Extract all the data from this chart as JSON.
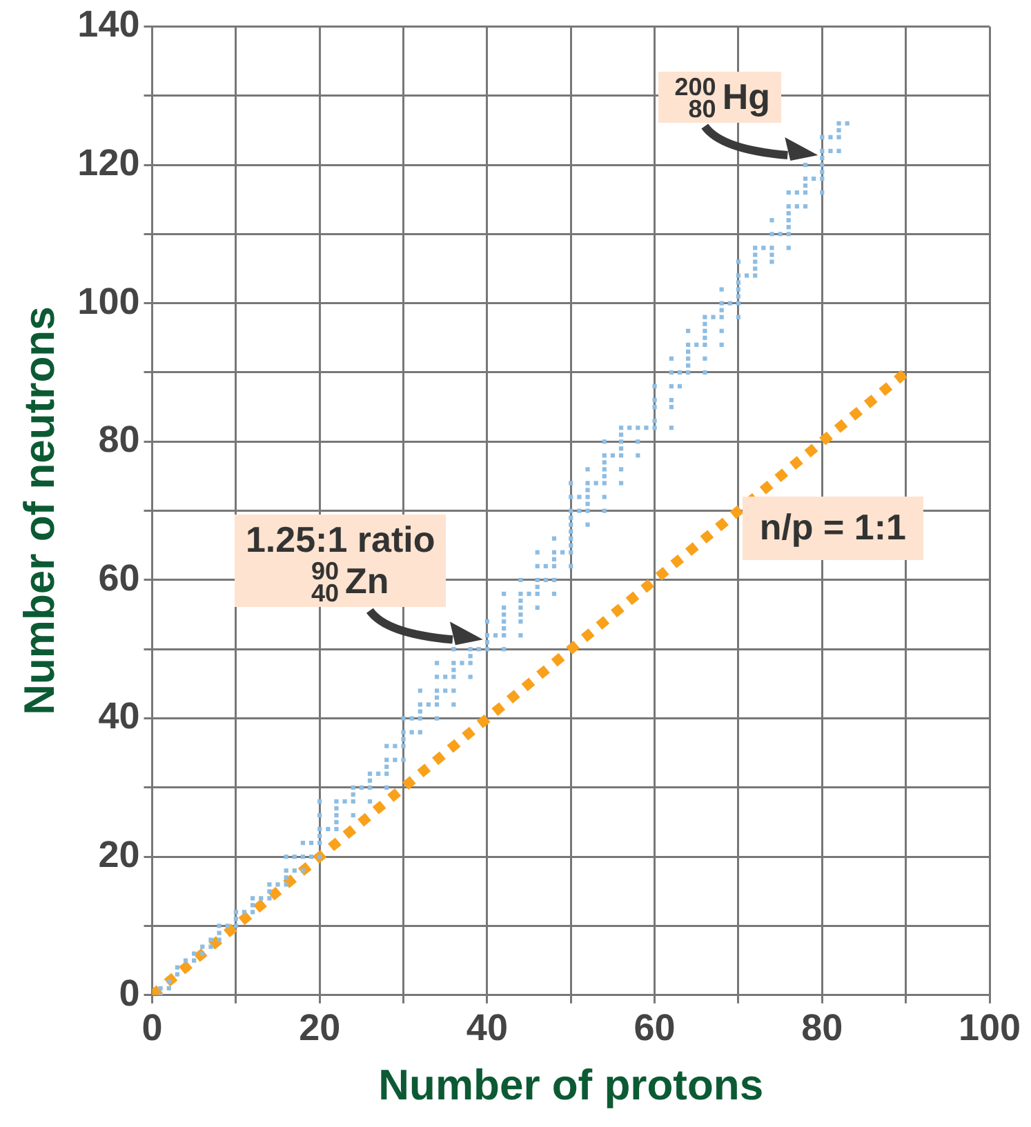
{
  "chart_data": {
    "type": "scatter",
    "xlabel": "Number of protons",
    "ylabel": "Number of neutrons",
    "xlim": [
      0,
      100
    ],
    "ylim": [
      0,
      140
    ],
    "xticks": [
      0,
      {
        "value": 10,
        "label": null
      },
      20,
      {
        "value": 30,
        "label": null
      },
      40,
      {
        "value": 50,
        "label": null
      },
      60,
      {
        "value": 70,
        "label": null
      },
      80,
      {
        "value": 90,
        "label": null
      },
      100
    ],
    "yticks": [
      0,
      {
        "value": 10,
        "label": null
      },
      20,
      {
        "value": 30,
        "label": null
      },
      40,
      {
        "value": 50,
        "label": null
      },
      60,
      {
        "value": 70,
        "label": null
      },
      80,
      {
        "value": 90,
        "label": null
      },
      100,
      {
        "value": 110,
        "label": null
      },
      120,
      {
        "value": 130,
        "label": null
      },
      140
    ],
    "grid": true,
    "legend": false,
    "marker": "square",
    "series": [
      {
        "color": "#8dbde3",
        "x": [
          1,
          1,
          2,
          2,
          3,
          3,
          4,
          5,
          5,
          6,
          6,
          7,
          7,
          8,
          8,
          8,
          9,
          10,
          10,
          10,
          11,
          12,
          12,
          12,
          13,
          14,
          14,
          14,
          15,
          16,
          16,
          16,
          16,
          17,
          17,
          18,
          18,
          18,
          19,
          19,
          20,
          20,
          20,
          20,
          20,
          20,
          21,
          22,
          22,
          22,
          22,
          22,
          23,
          24,
          24,
          24,
          24,
          25,
          26,
          26,
          26,
          26,
          27,
          28,
          28,
          28,
          28,
          28,
          29,
          29,
          30,
          30,
          30,
          30,
          30,
          31,
          31,
          32,
          32,
          32,
          32,
          32,
          33,
          34,
          34,
          34,
          34,
          34,
          34,
          35,
          35,
          36,
          36,
          36,
          36,
          36,
          36,
          37,
          38,
          38,
          38,
          38,
          39,
          40,
          40,
          40,
          40,
          41,
          42,
          42,
          42,
          42,
          42,
          42,
          42,
          44,
          44,
          44,
          44,
          44,
          44,
          44,
          45,
          46,
          46,
          46,
          46,
          46,
          46,
          47,
          47,
          48,
          48,
          48,
          48,
          48,
          48,
          49,
          50,
          50,
          50,
          50,
          50,
          50,
          50,
          50,
          50,
          50,
          51,
          51,
          52,
          52,
          52,
          52,
          52,
          52,
          52,
          53,
          54,
          54,
          54,
          54,
          54,
          54,
          54,
          54,
          55,
          56,
          56,
          56,
          56,
          56,
          56,
          56,
          57,
          58,
          58,
          58,
          59,
          60,
          60,
          60,
          60,
          60,
          62,
          62,
          62,
          62,
          62,
          62,
          63,
          63,
          64,
          64,
          64,
          64,
          64,
          64,
          65,
          66,
          66,
          66,
          66,
          66,
          66,
          66,
          67,
          68,
          68,
          68,
          68,
          68,
          68,
          69,
          70,
          70,
          70,
          70,
          70,
          70,
          70,
          71,
          72,
          72,
          72,
          72,
          72,
          73,
          74,
          74,
          74,
          74,
          74,
          75,
          76,
          76,
          76,
          76,
          76,
          76,
          76,
          77,
          77,
          78,
          78,
          78,
          78,
          78,
          79,
          80,
          80,
          80,
          80,
          80,
          80,
          80,
          81,
          81,
          82,
          82,
          82,
          82,
          83
        ],
        "values": [
          0,
          1,
          1,
          2,
          3,
          4,
          5,
          5,
          6,
          6,
          7,
          7,
          8,
          8,
          9,
          10,
          10,
          10,
          11,
          12,
          12,
          12,
          13,
          14,
          14,
          14,
          15,
          16,
          16,
          16,
          17,
          18,
          20,
          18,
          20,
          18,
          20,
          22,
          20,
          22,
          20,
          22,
          23,
          24,
          26,
          28,
          24,
          24,
          25,
          26,
          27,
          28,
          28,
          26,
          28,
          29,
          30,
          30,
          28,
          30,
          31,
          32,
          32,
          30,
          32,
          33,
          34,
          36,
          34,
          36,
          34,
          36,
          37,
          38,
          40,
          38,
          40,
          38,
          40,
          41,
          42,
          44,
          42,
          40,
          42,
          43,
          44,
          46,
          48,
          44,
          46,
          42,
          44,
          46,
          47,
          48,
          50,
          48,
          46,
          48,
          49,
          50,
          50,
          50,
          51,
          52,
          54,
          52,
          50,
          52,
          53,
          54,
          55,
          56,
          58,
          52,
          54,
          55,
          56,
          57,
          58,
          60,
          58,
          56,
          58,
          59,
          60,
          62,
          64,
          60,
          62,
          58,
          60,
          62,
          63,
          64,
          66,
          64,
          62,
          64,
          65,
          66,
          67,
          68,
          69,
          70,
          72,
          74,
          70,
          72,
          68,
          70,
          71,
          72,
          73,
          74,
          76,
          74,
          70,
          72,
          74,
          75,
          76,
          77,
          78,
          80,
          78,
          74,
          76,
          78,
          79,
          80,
          81,
          82,
          82,
          78,
          80,
          82,
          82,
          82,
          83,
          85,
          86,
          88,
          82,
          85,
          86,
          88,
          90,
          92,
          88,
          90,
          90,
          91,
          92,
          93,
          94,
          96,
          94,
          90,
          92,
          94,
          95,
          96,
          97,
          98,
          98,
          94,
          96,
          98,
          99,
          100,
          102,
          100,
          98,
          100,
          101,
          102,
          103,
          104,
          106,
          104,
          104,
          105,
          106,
          107,
          108,
          108,
          106,
          107,
          108,
          110,
          112,
          110,
          108,
          110,
          111,
          112,
          113,
          114,
          116,
          114,
          116,
          114,
          116,
          117,
          118,
          120,
          118,
          116,
          118,
          119,
          120,
          121,
          122,
          124,
          122,
          124,
          122,
          124,
          125,
          126,
          126
        ]
      },
      {
        "type": "line",
        "name": "n/p = 1:1",
        "color": "#f9a11b",
        "x": [
          0,
          90
        ],
        "values": [
          0,
          90
        ],
        "marker": "none",
        "line_style": "dotted"
      }
    ],
    "annotations": [
      {
        "text": "$^{200}$$_{80}$Hg",
        "x": 80,
        "y": 120
      },
      {
        "text": "1.25:1 ratio\n$^{90}$$_{40}$Zn",
        "x": 40,
        "y": 50
      }
    ]
  }
}
